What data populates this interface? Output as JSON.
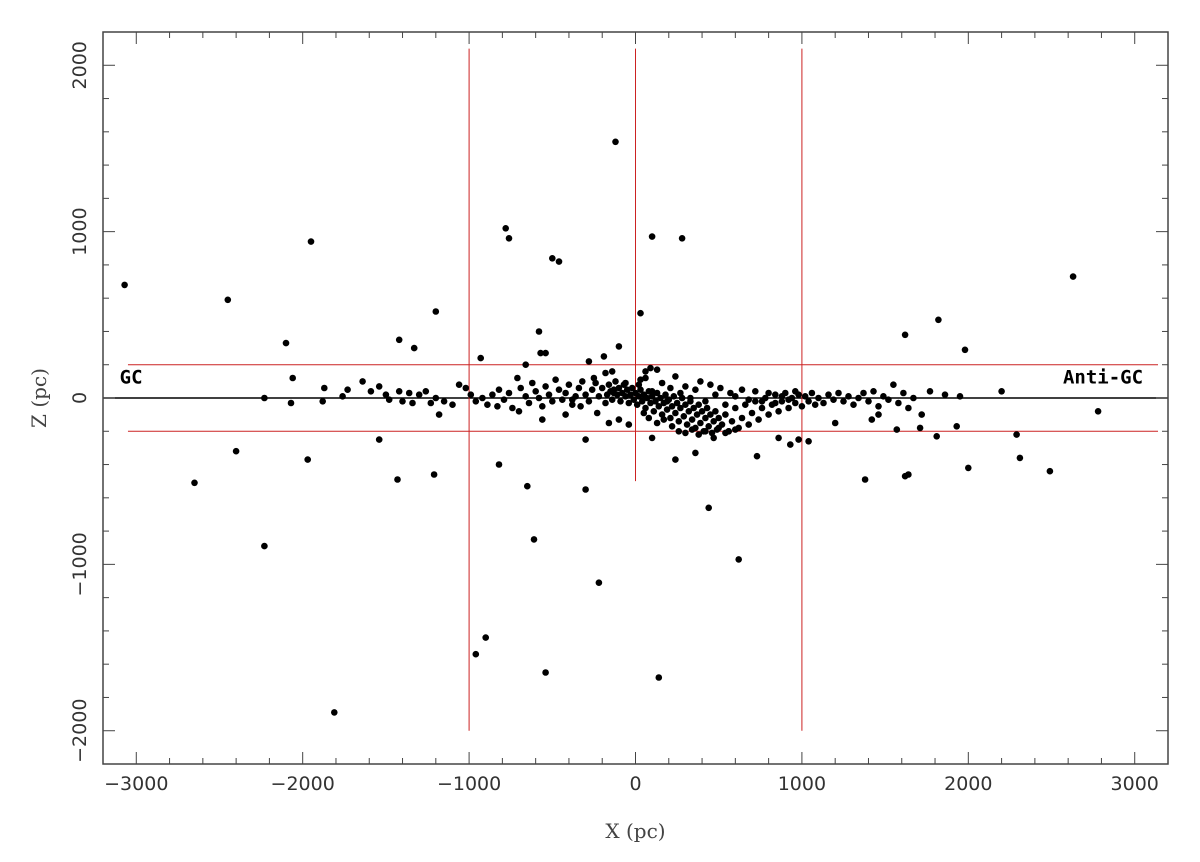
{
  "chart_data": {
    "type": "scatter",
    "title": "",
    "xlabel": "X (pc)",
    "ylabel": "Z (pc)",
    "xlim": [
      -3200,
      3200
    ],
    "ylim": [
      -2200,
      2200
    ],
    "xticks": [
      -3000,
      -2000,
      -1000,
      0,
      1000,
      2000,
      3000
    ],
    "xtick_labels": [
      "−3000",
      "−2000",
      "−1000",
      "0",
      "1000",
      "2000",
      "3000"
    ],
    "yticks": [
      -2000,
      -1000,
      0,
      1000,
      2000
    ],
    "ytick_labels": [
      "−2000",
      "−1000",
      "0",
      "1000",
      "2000"
    ],
    "grid": false,
    "annotations": [
      {
        "name": "gc-label",
        "text": "GC",
        "x": -3100,
        "y": 100
      },
      {
        "name": "anti-gc-label",
        "text": "Anti-GC",
        "x": 3050,
        "y": 100
      }
    ],
    "reference_lines": {
      "horizontal_black": [
        0
      ],
      "horizontal_red": [
        200,
        -200
      ],
      "vertical_red": [
        -1000,
        0,
        1000
      ]
    },
    "colors": {
      "points": "#000000",
      "reference_red": "#cc2222",
      "reference_black": "#000000",
      "frame": "#444444"
    },
    "points": [
      [
        -3070,
        680
      ],
      [
        -2450,
        590
      ],
      [
        -1950,
        940
      ],
      [
        -2100,
        330
      ],
      [
        -1200,
        520
      ],
      [
        -780,
        1020
      ],
      [
        -760,
        960
      ],
      [
        -500,
        840
      ],
      [
        -460,
        820
      ],
      [
        -120,
        1540
      ],
      [
        100,
        970
      ],
      [
        280,
        960
      ],
      [
        30,
        510
      ],
      [
        -580,
        400
      ],
      [
        -570,
        270
      ],
      [
        -540,
        270
      ],
      [
        -280,
        220
      ],
      [
        -180,
        150
      ],
      [
        -140,
        160
      ],
      [
        -100,
        310
      ],
      [
        -190,
        250
      ],
      [
        -930,
        240
      ],
      [
        -660,
        200
      ],
      [
        -1420,
        350
      ],
      [
        -1330,
        300
      ],
      [
        2630,
        730
      ],
      [
        1620,
        380
      ],
      [
        1820,
        470
      ],
      [
        1980,
        290
      ],
      [
        2200,
        40
      ],
      [
        2780,
        -80
      ],
      [
        2290,
        -220
      ],
      [
        2310,
        -360
      ],
      [
        2490,
        -440
      ],
      [
        2000,
        -420
      ],
      [
        1930,
        -170
      ],
      [
        1810,
        -230
      ],
      [
        1640,
        -460
      ],
      [
        1620,
        -470
      ],
      [
        1380,
        -490
      ],
      [
        1570,
        -190
      ],
      [
        1710,
        -180
      ],
      [
        -2650,
        -510
      ],
      [
        -2400,
        -320
      ],
      [
        -2230,
        -890
      ],
      [
        -1970,
        -370
      ],
      [
        -1430,
        -490
      ],
      [
        -1210,
        -460
      ],
      [
        -1540,
        -250
      ],
      [
        -1810,
        -1890
      ],
      [
        -960,
        -1540
      ],
      [
        -900,
        -1440
      ],
      [
        -540,
        -1650
      ],
      [
        -650,
        -530
      ],
      [
        -610,
        -850
      ],
      [
        -300,
        -550
      ],
      [
        -220,
        -1110
      ],
      [
        -820,
        -400
      ],
      [
        440,
        -660
      ],
      [
        620,
        -970
      ],
      [
        140,
        -1680
      ],
      [
        -300,
        -250
      ],
      [
        -2230,
        0
      ],
      [
        -2060,
        120
      ],
      [
        -2070,
        -30
      ],
      [
        -1870,
        60
      ],
      [
        -1880,
        -20
      ],
      [
        -1760,
        10
      ],
      [
        -1730,
        50
      ],
      [
        -1640,
        100
      ],
      [
        -1590,
        40
      ],
      [
        -1540,
        70
      ],
      [
        -1500,
        20
      ],
      [
        -1480,
        -10
      ],
      [
        -1420,
        40
      ],
      [
        -1400,
        -20
      ],
      [
        -1360,
        30
      ],
      [
        -1340,
        -30
      ],
      [
        -1300,
        20
      ],
      [
        -1260,
        40
      ],
      [
        -1230,
        -30
      ],
      [
        -1200,
        0
      ],
      [
        -1180,
        -100
      ],
      [
        -1150,
        -20
      ],
      [
        -1100,
        -40
      ],
      [
        -1060,
        80
      ],
      [
        -1020,
        60
      ],
      [
        -990,
        20
      ],
      [
        -960,
        -20
      ],
      [
        -920,
        0
      ],
      [
        -890,
        -40
      ],
      [
        -860,
        20
      ],
      [
        -820,
        50
      ],
      [
        -790,
        -10
      ],
      [
        -760,
        30
      ],
      [
        -740,
        -60
      ],
      [
        -710,
        120
      ],
      [
        -690,
        60
      ],
      [
        -660,
        10
      ],
      [
        -640,
        -30
      ],
      [
        -620,
        90
      ],
      [
        -600,
        40
      ],
      [
        -580,
        0
      ],
      [
        -560,
        -50
      ],
      [
        -540,
        70
      ],
      [
        -520,
        20
      ],
      [
        -500,
        -20
      ],
      [
        -480,
        110
      ],
      [
        -460,
        50
      ],
      [
        -440,
        -10
      ],
      [
        -420,
        30
      ],
      [
        -400,
        80
      ],
      [
        -380,
        -40
      ],
      [
        -360,
        10
      ],
      [
        -340,
        60
      ],
      [
        -320,
        100
      ],
      [
        -300,
        20
      ],
      [
        -280,
        -20
      ],
      [
        -260,
        50
      ],
      [
        -240,
        90
      ],
      [
        -220,
        10
      ],
      [
        -200,
        60
      ],
      [
        -180,
        -30
      ],
      [
        -170,
        20
      ],
      [
        -160,
        80
      ],
      [
        -150,
        40
      ],
      [
        -140,
        -10
      ],
      [
        -130,
        50
      ],
      [
        -120,
        100
      ],
      [
        -110,
        20
      ],
      [
        -100,
        60
      ],
      [
        -90,
        -20
      ],
      [
        -80,
        30
      ],
      [
        -70,
        80
      ],
      [
        -60,
        10
      ],
      [
        -50,
        50
      ],
      [
        -40,
        -30
      ],
      [
        -30,
        20
      ],
      [
        -20,
        60
      ],
      [
        -10,
        -10
      ],
      [
        0,
        30
      ],
      [
        10,
        -40
      ],
      [
        20,
        10
      ],
      [
        30,
        50
      ],
      [
        40,
        -20
      ],
      [
        50,
        20
      ],
      [
        60,
        -60
      ],
      [
        70,
        0
      ],
      [
        80,
        40
      ],
      [
        90,
        -30
      ],
      [
        100,
        10
      ],
      [
        110,
        -80
      ],
      [
        120,
        -20
      ],
      [
        130,
        30
      ],
      [
        140,
        -50
      ],
      [
        150,
        0
      ],
      [
        160,
        -100
      ],
      [
        170,
        -30
      ],
      [
        180,
        20
      ],
      [
        190,
        -70
      ],
      [
        200,
        -10
      ],
      [
        210,
        -120
      ],
      [
        220,
        -50
      ],
      [
        230,
        10
      ],
      [
        240,
        -90
      ],
      [
        250,
        -30
      ],
      [
        260,
        -140
      ],
      [
        270,
        -60
      ],
      [
        280,
        0
      ],
      [
        290,
        -110
      ],
      [
        300,
        -40
      ],
      [
        310,
        -160
      ],
      [
        320,
        -80
      ],
      [
        330,
        -20
      ],
      [
        340,
        -130
      ],
      [
        350,
        -60
      ],
      [
        360,
        -180
      ],
      [
        370,
        -100
      ],
      [
        380,
        -40
      ],
      [
        390,
        -150
      ],
      [
        400,
        -80
      ],
      [
        410,
        -200
      ],
      [
        420,
        -120
      ],
      [
        430,
        -60
      ],
      [
        440,
        -170
      ],
      [
        450,
        -100
      ],
      [
        460,
        -210
      ],
      [
        470,
        -140
      ],
      [
        480,
        -80
      ],
      [
        490,
        -190
      ],
      [
        500,
        -120
      ],
      [
        520,
        -160
      ],
      [
        540,
        -100
      ],
      [
        560,
        -200
      ],
      [
        580,
        -140
      ],
      [
        600,
        -60
      ],
      [
        620,
        -180
      ],
      [
        640,
        -120
      ],
      [
        660,
        -40
      ],
      [
        680,
        -160
      ],
      [
        700,
        -90
      ],
      [
        720,
        -20
      ],
      [
        740,
        -130
      ],
      [
        760,
        -60
      ],
      [
        780,
        0
      ],
      [
        800,
        -100
      ],
      [
        820,
        -40
      ],
      [
        840,
        20
      ],
      [
        860,
        -80
      ],
      [
        880,
        -20
      ],
      [
        900,
        30
      ],
      [
        920,
        -60
      ],
      [
        940,
        0
      ],
      [
        960,
        -30
      ],
      [
        980,
        20
      ],
      [
        1000,
        -50
      ],
      [
        1020,
        10
      ],
      [
        1040,
        -20
      ],
      [
        1060,
        30
      ],
      [
        1080,
        -40
      ],
      [
        1100,
        0
      ],
      [
        1130,
        -30
      ],
      [
        1160,
        20
      ],
      [
        1190,
        -10
      ],
      [
        1220,
        30
      ],
      [
        1250,
        -20
      ],
      [
        1280,
        10
      ],
      [
        1310,
        -40
      ],
      [
        1340,
        0
      ],
      [
        1370,
        30
      ],
      [
        1400,
        -20
      ],
      [
        1430,
        40
      ],
      [
        1460,
        -50
      ],
      [
        1490,
        10
      ],
      [
        1520,
        -10
      ],
      [
        1550,
        80
      ],
      [
        1580,
        -30
      ],
      [
        1610,
        30
      ],
      [
        1640,
        -60
      ],
      [
        1670,
        0
      ],
      [
        1720,
        -100
      ],
      [
        1770,
        40
      ],
      [
        1860,
        20
      ],
      [
        1950,
        10
      ],
      [
        1420,
        -130
      ],
      [
        1460,
        -100
      ],
      [
        1200,
        -150
      ],
      [
        1040,
        -260
      ],
      [
        980,
        -250
      ],
      [
        930,
        -280
      ],
      [
        860,
        -240
      ],
      [
        730,
        -350
      ],
      [
        560,
        -200
      ],
      [
        470,
        -240
      ],
      [
        360,
        -330
      ],
      [
        240,
        -370
      ],
      [
        100,
        -240
      ],
      [
        -40,
        -160
      ],
      [
        -100,
        -130
      ],
      [
        -160,
        -150
      ],
      [
        -230,
        -90
      ],
      [
        -330,
        -50
      ],
      [
        -420,
        -100
      ],
      [
        -700,
        -80
      ],
      [
        -830,
        -50
      ],
      [
        -560,
        -130
      ],
      [
        -380,
        -10
      ],
      [
        -250,
        120
      ],
      [
        -130,
        30
      ],
      [
        -60,
        90
      ],
      [
        20,
        80
      ],
      [
        60,
        120
      ],
      [
        100,
        40
      ],
      [
        130,
        170
      ],
      [
        160,
        90
      ],
      [
        190,
        -20
      ],
      [
        210,
        60
      ],
      [
        240,
        130
      ],
      [
        270,
        30
      ],
      [
        300,
        70
      ],
      [
        330,
        0
      ],
      [
        360,
        50
      ],
      [
        390,
        100
      ],
      [
        420,
        -20
      ],
      [
        450,
        80
      ],
      [
        480,
        20
      ],
      [
        510,
        60
      ],
      [
        540,
        -40
      ],
      [
        570,
        30
      ],
      [
        600,
        10
      ],
      [
        640,
        50
      ],
      [
        680,
        -10
      ],
      [
        720,
        40
      ],
      [
        760,
        -20
      ],
      [
        800,
        30
      ],
      [
        840,
        -30
      ],
      [
        880,
        10
      ],
      [
        920,
        -10
      ],
      [
        960,
        40
      ],
      [
        90,
        180
      ],
      [
        60,
        160
      ],
      [
        30,
        110
      ],
      [
        80,
        -120
      ],
      [
        50,
        -90
      ],
      [
        130,
        -150
      ],
      [
        170,
        -130
      ],
      [
        220,
        -170
      ],
      [
        260,
        -200
      ],
      [
        300,
        -210
      ],
      [
        340,
        -190
      ],
      [
        380,
        -220
      ],
      [
        420,
        -200
      ],
      [
        500,
        -180
      ],
      [
        540,
        -210
      ],
      [
        600,
        -190
      ]
    ]
  }
}
